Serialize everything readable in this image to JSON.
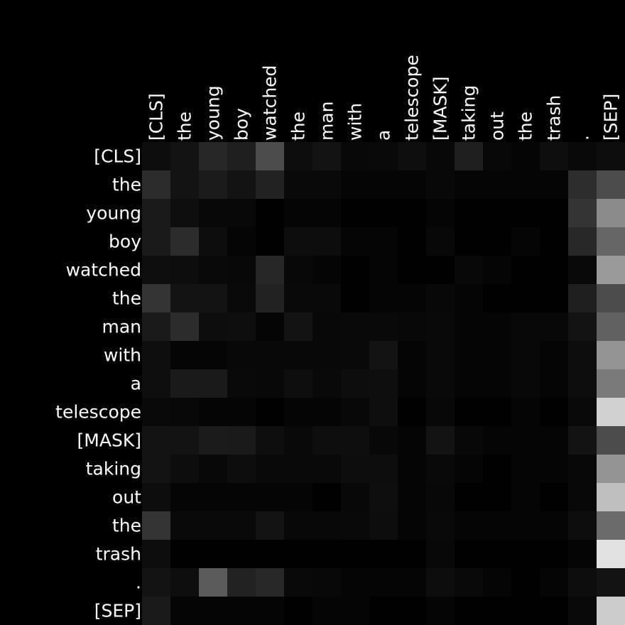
{
  "chart_data": {
    "type": "heatmap",
    "title": "",
    "xlabel": "",
    "ylabel": "",
    "x_labels": [
      "[CLS]",
      "the",
      "young",
      "boy",
      "watched",
      "the",
      "man",
      "with",
      "a",
      "telescope",
      "[MASK]",
      "taking",
      "out",
      "the",
      "trash",
      ".",
      "[SEP]"
    ],
    "y_labels": [
      "[CLS]",
      "the",
      "young",
      "boy",
      "watched",
      "the",
      "man",
      "with",
      "a",
      "telescope",
      "[MASK]",
      "taking",
      "out",
      "the",
      "trash",
      ".",
      "[SEP]"
    ],
    "value_range": [
      0,
      1
    ],
    "colormap": "grayscale black-to-white",
    "values": [
      [
        0.05,
        0.08,
        0.15,
        0.12,
        0.3,
        0.05,
        0.08,
        0.03,
        0.04,
        0.06,
        0.03,
        0.12,
        0.03,
        0.02,
        0.06,
        0.04,
        0.05
      ],
      [
        0.17,
        0.07,
        0.11,
        0.07,
        0.13,
        0.04,
        0.04,
        0.02,
        0.02,
        0.02,
        0.03,
        0.02,
        0.02,
        0.02,
        0.02,
        0.18,
        0.3
      ],
      [
        0.1,
        0.06,
        0.03,
        0.03,
        0.01,
        0.02,
        0.02,
        0.01,
        0.01,
        0.01,
        0.02,
        0.01,
        0.01,
        0.01,
        0.01,
        0.2,
        0.55
      ],
      [
        0.1,
        0.17,
        0.05,
        0.02,
        0.01,
        0.05,
        0.05,
        0.02,
        0.02,
        0.01,
        0.03,
        0.01,
        0.01,
        0.02,
        0.01,
        0.16,
        0.4
      ],
      [
        0.06,
        0.05,
        0.04,
        0.03,
        0.15,
        0.03,
        0.02,
        0.01,
        0.02,
        0.01,
        0.01,
        0.03,
        0.02,
        0.01,
        0.01,
        0.04,
        0.6
      ],
      [
        0.2,
        0.07,
        0.07,
        0.04,
        0.13,
        0.04,
        0.04,
        0.01,
        0.02,
        0.02,
        0.03,
        0.02,
        0.01,
        0.01,
        0.01,
        0.12,
        0.3
      ],
      [
        0.1,
        0.17,
        0.05,
        0.06,
        0.02,
        0.07,
        0.03,
        0.04,
        0.04,
        0.03,
        0.04,
        0.02,
        0.02,
        0.03,
        0.03,
        0.08,
        0.38
      ],
      [
        0.06,
        0.02,
        0.02,
        0.03,
        0.03,
        0.03,
        0.03,
        0.04,
        0.07,
        0.02,
        0.04,
        0.02,
        0.02,
        0.03,
        0.02,
        0.05,
        0.58
      ],
      [
        0.06,
        0.1,
        0.1,
        0.04,
        0.03,
        0.06,
        0.04,
        0.05,
        0.06,
        0.02,
        0.04,
        0.02,
        0.02,
        0.03,
        0.02,
        0.05,
        0.48
      ],
      [
        0.04,
        0.03,
        0.02,
        0.02,
        0.01,
        0.02,
        0.02,
        0.03,
        0.06,
        0.01,
        0.03,
        0.01,
        0.01,
        0.02,
        0.01,
        0.04,
        0.82
      ],
      [
        0.07,
        0.07,
        0.11,
        0.1,
        0.06,
        0.04,
        0.06,
        0.06,
        0.03,
        0.02,
        0.07,
        0.03,
        0.02,
        0.02,
        0.02,
        0.07,
        0.3
      ],
      [
        0.07,
        0.05,
        0.03,
        0.05,
        0.04,
        0.04,
        0.04,
        0.05,
        0.05,
        0.02,
        0.04,
        0.02,
        0.01,
        0.02,
        0.02,
        0.03,
        0.58
      ],
      [
        0.05,
        0.02,
        0.02,
        0.02,
        0.02,
        0.02,
        0.01,
        0.03,
        0.06,
        0.02,
        0.03,
        0.01,
        0.01,
        0.02,
        0.01,
        0.03,
        0.75
      ],
      [
        0.2,
        0.04,
        0.04,
        0.04,
        0.08,
        0.03,
        0.03,
        0.04,
        0.05,
        0.02,
        0.04,
        0.02,
        0.02,
        0.02,
        0.02,
        0.05,
        0.42
      ],
      [
        0.05,
        0.01,
        0.01,
        0.01,
        0.01,
        0.01,
        0.01,
        0.01,
        0.01,
        0.01,
        0.03,
        0.01,
        0.01,
        0.01,
        0.01,
        0.02,
        0.88
      ],
      [
        0.08,
        0.06,
        0.35,
        0.13,
        0.16,
        0.04,
        0.03,
        0.02,
        0.02,
        0.02,
        0.05,
        0.04,
        0.02,
        0.01,
        0.02,
        0.05,
        0.08
      ],
      [
        0.1,
        0.02,
        0.02,
        0.02,
        0.02,
        0.01,
        0.02,
        0.02,
        0.01,
        0.01,
        0.02,
        0.01,
        0.01,
        0.01,
        0.01,
        0.04,
        0.8
      ]
    ]
  }
}
